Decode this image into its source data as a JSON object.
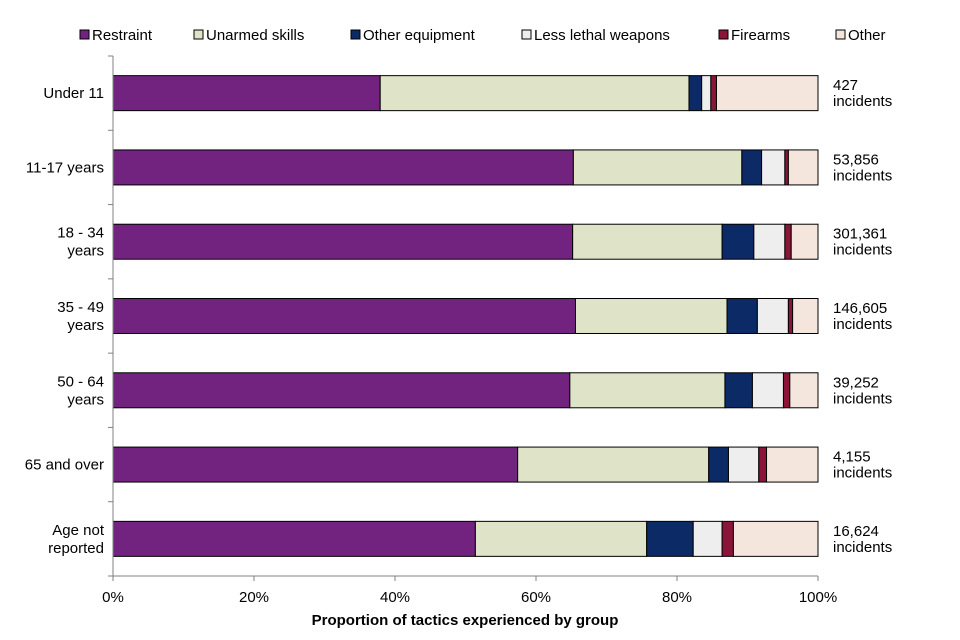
{
  "chart_data": {
    "type": "bar",
    "orientation": "horizontal",
    "stacked": true,
    "normalized": true,
    "title": "",
    "xlabel": "Proportion of tactics experienced by group",
    "ylabel": "",
    "xlim": [
      0,
      100
    ],
    "x_ticks": [
      "0%",
      "20%",
      "40%",
      "60%",
      "80%",
      "100%"
    ],
    "legend_position": "top",
    "grid": false,
    "categories": [
      [
        "Under 11"
      ],
      [
        "11-17 years"
      ],
      [
        "18 - 34",
        "years"
      ],
      [
        "35 - 49",
        "years"
      ],
      [
        "50 - 64",
        "years"
      ],
      [
        "65 and over"
      ],
      [
        "Age not",
        "reported"
      ]
    ],
    "annotations": [
      [
        "427",
        "incidents"
      ],
      [
        "53,856",
        "incidents"
      ],
      [
        "301,361",
        "incidents"
      ],
      [
        "146,605",
        "incidents"
      ],
      [
        "39,252",
        "incidents"
      ],
      [
        "4,155",
        "incidents"
      ],
      [
        "16,624",
        "incidents"
      ]
    ],
    "series": [
      {
        "name": "Restraint",
        "color": "#71237f",
        "values": [
          37.9,
          65.3,
          65.2,
          65.6,
          64.8,
          57.4,
          51.4
        ]
      },
      {
        "name": "Unarmed skills",
        "color": "#dfe3c8",
        "values": [
          43.8,
          23.9,
          21.2,
          21.5,
          22.0,
          27.1,
          24.3
        ]
      },
      {
        "name": "Other equipment",
        "color": "#0c2a66",
        "values": [
          1.8,
          2.8,
          4.5,
          4.3,
          3.9,
          2.8,
          6.6
        ]
      },
      {
        "name": "Less lethal weapons",
        "color": "#eeeeee",
        "values": [
          1.3,
          3.3,
          4.4,
          4.4,
          4.4,
          4.3,
          4.1
        ]
      },
      {
        "name": "Firearms",
        "color": "#8a1538",
        "values": [
          0.8,
          0.5,
          0.9,
          0.6,
          0.9,
          1.1,
          1.6
        ]
      },
      {
        "name": "Other",
        "color": "#f5e6dd",
        "values": [
          14.4,
          4.2,
          3.8,
          3.6,
          4.0,
          7.3,
          12.0
        ]
      }
    ]
  }
}
